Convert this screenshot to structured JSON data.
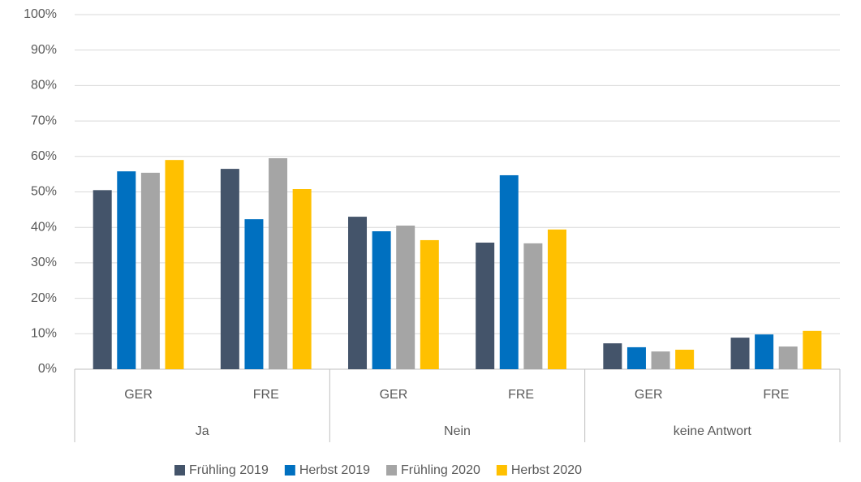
{
  "chart_data": {
    "type": "bar",
    "categories": [
      "GER",
      "FRE",
      "GER",
      "FRE",
      "GER",
      "FRE"
    ],
    "category_groups": [
      "Ja",
      "Nein",
      "keine Antwort"
    ],
    "series": [
      {
        "name": "Frühling 2019",
        "color": "#44546a",
        "values": [
          50.5,
          56.5,
          43,
          35.7,
          7.3,
          8.9
        ]
      },
      {
        "name": "Herbst 2019",
        "color": "#0070c0",
        "values": [
          55.8,
          42.3,
          38.9,
          54.7,
          6.2,
          9.8
        ]
      },
      {
        "name": "Frühling 2020",
        "color": "#a5a5a5",
        "values": [
          55.4,
          59.5,
          40.5,
          35.5,
          5,
          6.4
        ]
      },
      {
        "name": "Herbst 2020",
        "color": "#ffc000",
        "values": [
          59,
          50.8,
          36.4,
          39.4,
          5.5,
          10.8
        ]
      }
    ],
    "ylim": [
      0,
      100
    ],
    "yticks": [
      {
        "value": 0,
        "label": "0%"
      },
      {
        "value": 10,
        "label": "10%"
      },
      {
        "value": 20,
        "label": "20%"
      },
      {
        "value": 30,
        "label": "30%"
      },
      {
        "value": 40,
        "label": "40%"
      },
      {
        "value": 50,
        "label": "50%"
      },
      {
        "value": 60,
        "label": "60%"
      },
      {
        "value": 70,
        "label": "70%"
      },
      {
        "value": 80,
        "label": "80%"
      },
      {
        "value": 90,
        "label": "90%"
      },
      {
        "value": 100,
        "label": "100%"
      }
    ],
    "grid": true,
    "legend": "bottom"
  }
}
